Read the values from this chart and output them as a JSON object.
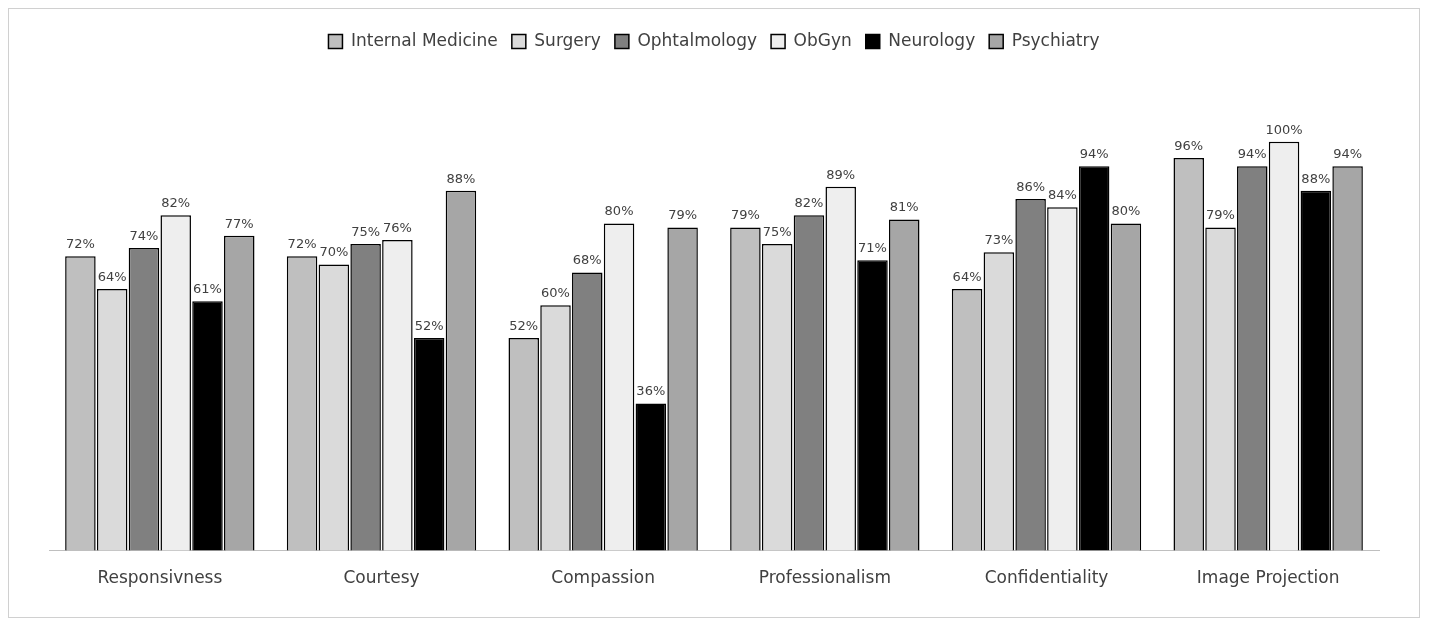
{
  "chart_data": {
    "type": "bar",
    "categories": [
      "Responsivness",
      "Courtesy",
      "Compassion",
      "Professionalism",
      "Confidentiality",
      "Image Projection"
    ],
    "series": [
      {
        "name": "Internal Medicine",
        "color": "#bfbfbf",
        "values": [
          72,
          72,
          52,
          79,
          64,
          96
        ],
        "value_labels": [
          "72%",
          "72%",
          "52%",
          "79%",
          "64%",
          "96%"
        ]
      },
      {
        "name": "Surgery",
        "color": "#dadada",
        "values": [
          64,
          70,
          60,
          75,
          73,
          79
        ],
        "value_labels": [
          "64%",
          "70%",
          "60%",
          "75%",
          "73%",
          "79%"
        ]
      },
      {
        "name": "Ophtalmology",
        "color": "#808080",
        "values": [
          74,
          75,
          68,
          82,
          86,
          94
        ],
        "value_labels": [
          "74%",
          "75%",
          "68%",
          "82%",
          "86%",
          "94%"
        ]
      },
      {
        "name": "ObGyn",
        "color": "#eeeeee",
        "values": [
          82,
          76,
          80,
          89,
          84,
          100
        ],
        "value_labels": [
          "82%",
          "76%",
          "80%",
          "89%",
          "84%",
          "100%"
        ]
      },
      {
        "name": "Neurology",
        "color": "#000000",
        "values": [
          61,
          52,
          36,
          71,
          94,
          88
        ],
        "value_labels": [
          "61%",
          "52%",
          "36%",
          "71%",
          "94%",
          "88%"
        ]
      },
      {
        "name": "Psychiatry",
        "color": "#a6a6a6",
        "values": [
          77,
          88,
          79,
          81,
          80,
          94
        ],
        "value_labels": [
          "77%",
          "88%",
          "79%",
          "81%",
          "80%",
          "94%"
        ]
      }
    ],
    "legend": "top",
    "grid": false
  }
}
